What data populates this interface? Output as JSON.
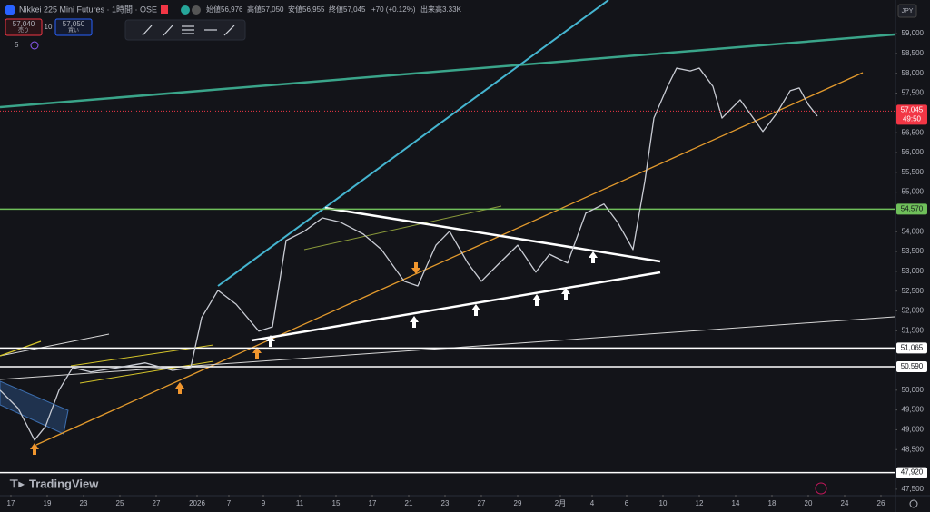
{
  "header": {
    "symbol": "Nikkei 225 Mini Futures · 1時間 · OSE",
    "open_label": "始値",
    "open": "56,976",
    "high_label": "高値",
    "high": "57,050",
    "low_label": "安値",
    "low": "56,955",
    "close_label": "終値",
    "close": "57,045",
    "change": "+70 (+0.12%)",
    "volume_label": "出来高",
    "volume": "3.33K",
    "sell_price": "57,040",
    "sell_label": "売り",
    "spread": "10",
    "buy_price": "57,050",
    "buy_label": "買い",
    "indicator_count": "5",
    "currency": "JPY",
    "logo": "TradingView"
  },
  "chart_data": {
    "type": "line",
    "color": "#c9ccd4",
    "x": [
      0,
      1,
      1.9,
      2.5,
      3.25,
      4,
      5,
      6.5,
      8,
      9.5,
      10.5,
      11.1,
      12,
      13,
      14.25,
      15,
      15.75,
      16.75,
      17.75,
      18.75,
      20,
      21,
      22.25,
      23,
      24,
      24.75,
      25.75,
      26.5,
      27.5,
      28.5,
      29.5,
      30.25,
      31.25,
      32.25,
      33.25,
      34,
      34.85,
      35.5,
      36,
      36.75,
      37.25,
      38,
      38.5,
      39.25,
      39.75,
      40.75,
      42,
      42.75,
      43.5,
      44,
      44.5,
      45
    ],
    "values": [
      50000,
      49540,
      48740,
      49080,
      50000,
      50570,
      50460,
      50570,
      50690,
      50500,
      50570,
      51830,
      52520,
      52170,
      51490,
      51600,
      53780,
      54010,
      54350,
      54240,
      53940,
      53550,
      52750,
      52630,
      53660,
      54010,
      53210,
      52750,
      53210,
      53660,
      52980,
      53430,
      53210,
      54470,
      54700,
      54240,
      53550,
      55270,
      56870,
      57670,
      58130,
      58060,
      58130,
      57670,
      56870,
      57330,
      56530,
      56980,
      57560,
      57630,
      57210,
      56920
    ],
    "xlim": [
      0,
      49.25
    ],
    "xticks": [
      {
        "value": 0.6,
        "label": "17"
      },
      {
        "value": 2.6,
        "label": "19"
      },
      {
        "value": 4.6,
        "label": "23"
      },
      {
        "value": 6.6,
        "label": "25"
      },
      {
        "value": 8.6,
        "label": "27"
      },
      {
        "value": 10.85,
        "label": "2026"
      },
      {
        "value": 12.6,
        "label": "7"
      },
      {
        "value": 14.5,
        "label": "9"
      },
      {
        "value": 16.5,
        "label": "11"
      },
      {
        "value": 18.5,
        "label": "15"
      },
      {
        "value": 20.5,
        "label": "17"
      },
      {
        "value": 22.5,
        "label": "21"
      },
      {
        "value": 24.5,
        "label": "23"
      },
      {
        "value": 26.5,
        "label": "27"
      },
      {
        "value": 28.5,
        "label": "29"
      },
      {
        "value": 30.85,
        "label": "2月"
      },
      {
        "value": 32.6,
        "label": "4"
      },
      {
        "value": 34.5,
        "label": "6"
      },
      {
        "value": 36.5,
        "label": "10"
      },
      {
        "value": 38.5,
        "label": "12"
      },
      {
        "value": 40.5,
        "label": "14"
      },
      {
        "value": 42.5,
        "label": "18"
      },
      {
        "value": 44.5,
        "label": "20"
      },
      {
        "value": 46.5,
        "label": "24"
      },
      {
        "value": 48.5,
        "label": "26"
      }
    ],
    "ylim": [
      47360,
      59850
    ],
    "yticks": [
      {
        "value": 59000,
        "label": "59,000"
      },
      {
        "value": 58500,
        "label": "58,500"
      },
      {
        "value": 58000,
        "label": "58,000"
      },
      {
        "value": 57500,
        "label": "57,500"
      },
      {
        "value": 56500,
        "label": "56,500"
      },
      {
        "value": 56000,
        "label": "56,000"
      },
      {
        "value": 55500,
        "label": "55,500"
      },
      {
        "value": 55000,
        "label": "55,000"
      },
      {
        "value": 54000,
        "label": "54,000"
      },
      {
        "value": 53500,
        "label": "53,500"
      },
      {
        "value": 53000,
        "label": "53,000"
      },
      {
        "value": 52500,
        "label": "52,500"
      },
      {
        "value": 52000,
        "label": "52,000"
      },
      {
        "value": 51500,
        "label": "51,500"
      },
      {
        "value": 50000,
        "label": "50,000"
      },
      {
        "value": 49500,
        "label": "49,500"
      },
      {
        "value": 49000,
        "label": "49,000"
      },
      {
        "value": 48500,
        "label": "48,500"
      },
      {
        "value": 47500,
        "label": "47,500"
      }
    ],
    "levels": [
      {
        "value": 54570,
        "label": "54,570",
        "color": "#6fbf5a"
      },
      {
        "value": 51065,
        "label": "51,065",
        "color": "#ffffff"
      },
      {
        "value": 50590,
        "label": "50,590",
        "color": "#ffffff"
      },
      {
        "value": 47920,
        "label": "47,920",
        "color": "#ffffff"
      }
    ],
    "last_price": {
      "value": 57045,
      "label": "57,045",
      "countdown": "49:50",
      "color": "#f23645"
    }
  }
}
